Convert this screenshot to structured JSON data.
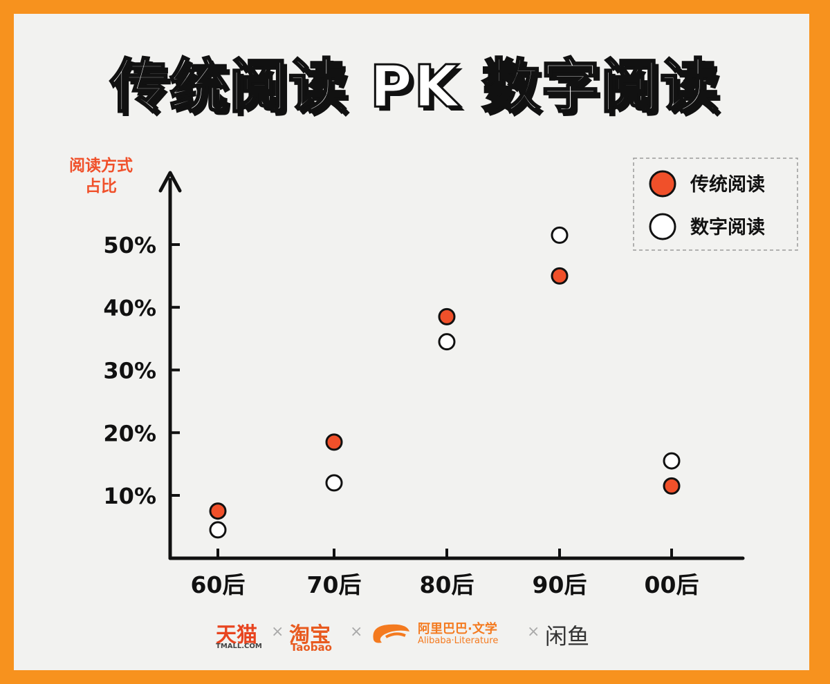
{
  "title": "传统阅读 PK 数字阅读",
  "colors": {
    "background": "#f7921e",
    "card": "#f2f2f0",
    "traditional": "#f0502a",
    "digital": "#ffffff",
    "brand_red": "#e8441f"
  },
  "chart_data": {
    "type": "scatter",
    "title": "传统阅读 PK 数字阅读",
    "ylabel": "阅读方式占比",
    "ylabel_lines": [
      "阅读方式",
      "占比"
    ],
    "categories": [
      "60后",
      "70后",
      "80后",
      "90后",
      "00后"
    ],
    "yticks": [
      "10%",
      "20%",
      "30%",
      "40%",
      "50%"
    ],
    "ytick_values": [
      10,
      20,
      30,
      40,
      50
    ],
    "ylim": [
      0,
      60
    ],
    "grid": false,
    "legend_position": "top-right",
    "series": [
      {
        "name": "传统阅读",
        "values": [
          7.5,
          18.5,
          38.5,
          45,
          11.5
        ]
      },
      {
        "name": "数字阅读",
        "values": [
          4.5,
          12,
          34.5,
          51.5,
          15.5
        ]
      }
    ]
  },
  "footer": {
    "tmall": "天猫",
    "tmall_sub": "TMALL.COM",
    "taobao": "淘宝",
    "taobao_sub": "Taobao",
    "alibaba": "阿里巴巴·文学",
    "alibaba_sub": "Alibaba·Literature",
    "xianyu": "闲鱼",
    "separator": "×"
  }
}
